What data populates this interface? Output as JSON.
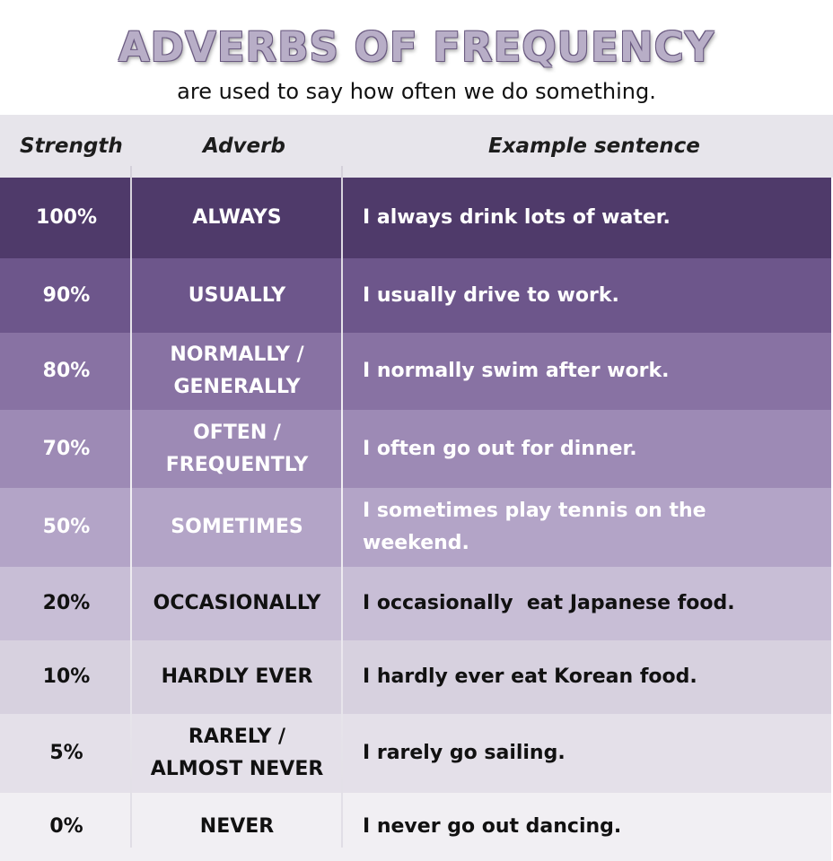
{
  "title": "ADVERBS OF FREQUENCY",
  "subtitle": "are used to say how often we do something.",
  "headers": {
    "strength": "Strength",
    "adverb": "Adverb",
    "example": "Example sentence"
  },
  "rows": [
    {
      "strength": "100%",
      "adverb": "ALWAYS",
      "example": "I always drink lots of water.",
      "color": "#4f3a6a",
      "text_color": "#ffffff"
    },
    {
      "strength": "90%",
      "adverb": "USUALLY",
      "example": "I usually drive to work.",
      "color": "#6d568b",
      "text_color": "#ffffff"
    },
    {
      "strength": "80%",
      "adverb": "NORMALLY / GENERALLY",
      "example": "I normally swim after work.",
      "color": "#8872a3",
      "text_color": "#ffffff"
    },
    {
      "strength": "70%",
      "adverb": "OFTEN / FREQUENTLY",
      "example": "I often go out for dinner.",
      "color": "#9d8ab5",
      "text_color": "#ffffff"
    },
    {
      "strength": "50%",
      "adverb": "SOMETIMES",
      "example": "I sometimes play tennis on the weekend.",
      "color": "#b3a4c7",
      "text_color": "#ffffff"
    },
    {
      "strength": "20%",
      "adverb": "OCCASIONALLY",
      "example": "I occasionally  eat Japanese food.",
      "color": "#c8bed6",
      "text_color": "#111111"
    },
    {
      "strength": "10%",
      "adverb": "HARDLY EVER",
      "example": "I hardly ever eat Korean food.",
      "color": "#d7d1df",
      "text_color": "#111111"
    },
    {
      "strength": "5%",
      "adverb": "RARELY / ALMOST NEVER",
      "example": "I rarely go sailing.",
      "color": "#e4e0e9",
      "text_color": "#111111"
    },
    {
      "strength": "0%",
      "adverb": "NEVER",
      "example": "I never go out dancing.",
      "color": "#f1eff3",
      "text_color": "#111111"
    }
  ]
}
